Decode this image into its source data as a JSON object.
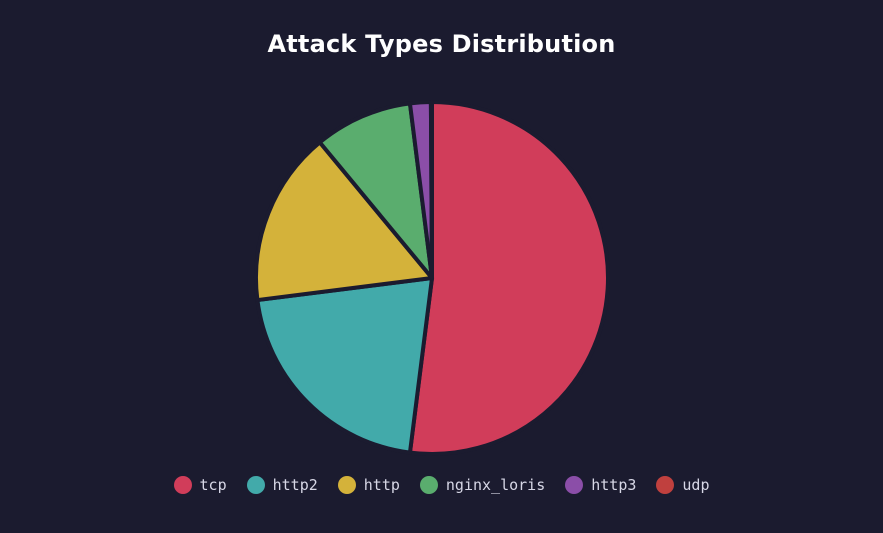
{
  "chart_data": {
    "type": "pie",
    "title": "Attack Types Distribution",
    "categories": [
      "tcp",
      "http2",
      "http",
      "nginx_loris",
      "http3",
      "udp"
    ],
    "values": [
      52,
      21,
      16,
      9,
      1.9,
      0.1
    ],
    "colors": [
      "#d13d5a",
      "#42aaaa",
      "#d4b23a",
      "#5aad6e",
      "#8b4ea8",
      "#c0403e"
    ],
    "legend_position": "bottom",
    "start_angle": "top, clockwise"
  }
}
